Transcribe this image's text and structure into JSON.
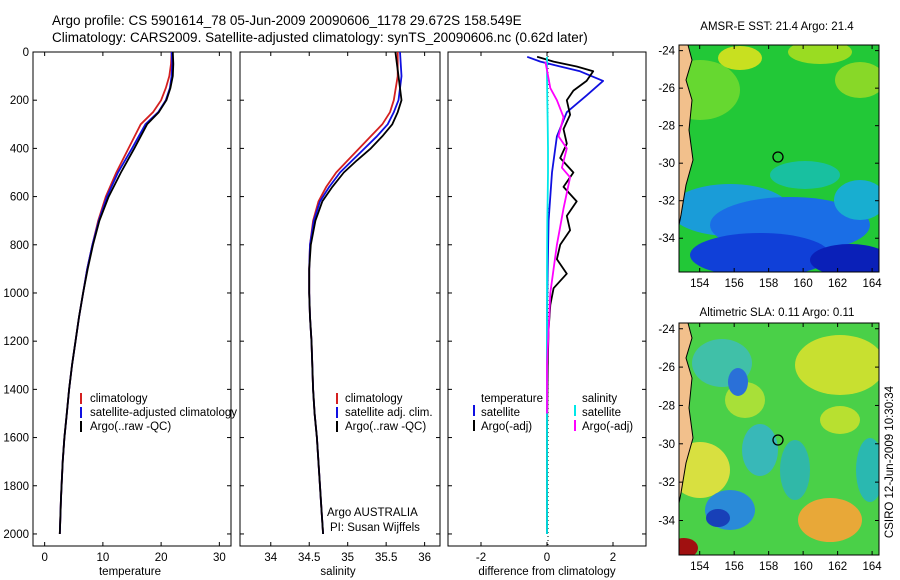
{
  "header": {
    "line1": "Argo profile: CS 5901614_78 05-Jun-2009 20090606_1178 29.672S 158.549E",
    "line2": "Climatology: CARS2009. Satellite-adjusted climatology: synTS_20090606.nc (0.62d later)"
  },
  "colors": {
    "climatology": "#d42020",
    "satellite": "#1010e0",
    "argo": "#000000",
    "sal_satellite": "#00e8e8",
    "sal_argo": "#ff00ff"
  },
  "side_label": "CSIRO 12-Jun-2009 10:30:34",
  "chart_data": [
    {
      "type": "line",
      "id": "temperature",
      "xlabel": "temperature",
      "ylabel": "",
      "xlim": [
        -2,
        32
      ],
      "ylim": [
        2050,
        0
      ],
      "xticks": [
        0,
        10,
        20,
        30
      ],
      "yticks": [
        0,
        200,
        400,
        600,
        800,
        1000,
        1200,
        1400,
        1600,
        1800,
        2000
      ],
      "legend": {
        "position": "lower-right",
        "entries": [
          "climatology",
          "satellite-adjusted climatology",
          "Argo(..raw -QC)"
        ]
      },
      "series": [
        {
          "name": "climatology",
          "x": [
            21.8,
            21.7,
            21.4,
            20.8,
            20.0,
            18.6,
            16.5,
            14.4,
            12.3,
            10.5,
            9.2,
            8.2,
            7.3,
            6.6,
            5.9,
            5.3,
            4.7,
            4.2,
            3.8,
            3.4,
            3.1,
            2.8,
            2.6
          ],
          "depth": [
            0,
            50,
            100,
            150,
            200,
            250,
            300,
            400,
            500,
            600,
            700,
            800,
            900,
            1000,
            1100,
            1200,
            1300,
            1400,
            1500,
            1600,
            1700,
            1850,
            2000
          ]
        },
        {
          "name": "satellite-adjusted climatology",
          "x": [
            21.8,
            21.9,
            21.8,
            21.5,
            20.8,
            19.5,
            17.3,
            15.0,
            12.6,
            10.7,
            9.3,
            8.2,
            7.3,
            6.6,
            5.9,
            5.3,
            4.7,
            4.2,
            3.8,
            3.4,
            3.1,
            2.8,
            2.6
          ],
          "depth": [
            0,
            50,
            100,
            150,
            200,
            250,
            300,
            400,
            500,
            600,
            700,
            800,
            900,
            1000,
            1100,
            1200,
            1300,
            1400,
            1500,
            1600,
            1700,
            1850,
            2000
          ]
        },
        {
          "name": "Argo(..raw -QC)",
          "x": [
            22.0,
            22.1,
            22.0,
            21.6,
            20.9,
            19.6,
            17.6,
            15.4,
            13.1,
            11.0,
            9.4,
            8.3,
            7.4,
            6.6,
            5.9,
            5.3,
            4.7,
            4.2,
            3.8,
            3.4,
            3.1,
            2.8,
            2.6
          ],
          "depth": [
            0,
            50,
            100,
            150,
            200,
            250,
            300,
            400,
            500,
            600,
            700,
            800,
            900,
            1000,
            1100,
            1200,
            1300,
            1400,
            1500,
            1600,
            1700,
            1850,
            2000
          ]
        }
      ]
    },
    {
      "type": "line",
      "id": "salinity",
      "xlabel": "salinity",
      "xlim": [
        33.6,
        36.2
      ],
      "ylim": [
        2050,
        0
      ],
      "xticks": [
        34,
        34.5,
        35,
        35.5,
        36
      ],
      "legend": {
        "position": "lower-right",
        "entries": [
          "climatology",
          "satellite adj. clim.",
          "Argo(..raw -QC)"
        ]
      },
      "annotation": {
        "line1": "Argo AUSTRALIA",
        "line2": "PI: Susan Wijffels"
      },
      "series": [
        {
          "name": "climatology",
          "x": [
            35.65,
            35.65,
            35.6,
            35.55,
            35.45,
            35.3,
            35.15,
            35.0,
            34.85,
            34.72,
            34.62,
            34.55,
            34.51,
            34.5,
            34.5,
            34.51,
            34.53,
            34.55,
            34.57,
            34.6,
            34.63,
            34.66,
            34.68
          ],
          "depth": [
            0,
            100,
            200,
            250,
            300,
            350,
            400,
            450,
            500,
            560,
            620,
            700,
            800,
            900,
            1000,
            1100,
            1200,
            1400,
            1500,
            1600,
            1750,
            1900,
            2000
          ]
        },
        {
          "name": "satellite adj. clim.",
          "x": [
            35.68,
            35.7,
            35.66,
            35.6,
            35.52,
            35.38,
            35.22,
            35.06,
            34.9,
            34.76,
            34.64,
            34.56,
            34.51,
            34.5,
            34.5,
            34.51,
            34.53,
            34.55,
            34.57,
            34.6,
            34.63,
            34.66,
            34.68
          ],
          "depth": [
            0,
            100,
            200,
            250,
            300,
            350,
            400,
            450,
            500,
            560,
            620,
            700,
            800,
            900,
            1000,
            1100,
            1200,
            1400,
            1500,
            1600,
            1750,
            1900,
            2000
          ]
        },
        {
          "name": "Argo(..raw -QC)",
          "x": [
            35.62,
            35.66,
            35.7,
            35.65,
            35.58,
            35.45,
            35.3,
            35.12,
            34.95,
            34.8,
            34.67,
            34.58,
            34.52,
            34.5,
            34.5,
            34.51,
            34.53,
            34.55,
            34.57,
            34.6,
            34.63,
            34.66,
            34.68
          ],
          "depth": [
            0,
            100,
            200,
            250,
            300,
            350,
            400,
            450,
            500,
            560,
            620,
            700,
            800,
            900,
            1000,
            1100,
            1200,
            1400,
            1500,
            1600,
            1750,
            1900,
            2000
          ]
        }
      ]
    },
    {
      "type": "line",
      "id": "difference",
      "xlabel": "difference from climatology",
      "xlim": [
        -3,
        3
      ],
      "ylim": [
        2050,
        0
      ],
      "xticks": [
        -2,
        0,
        2
      ],
      "legend": {
        "position": "lower-right",
        "temperature_title": "temperature",
        "salinity_title": "salinity",
        "temperature_entries": [
          "satellite",
          "Argo(-adj)"
        ],
        "salinity_entries": [
          "satellite",
          "Argo(-adj)"
        ]
      },
      "series": [
        {
          "name": "temperature satellite",
          "x": [
            -0.6,
            -0.2,
            0.4,
            1.0,
            1.7,
            1.2,
            0.6,
            0.3,
            0.15,
            0.05,
            0.02,
            0.0,
            0.0,
            0.0,
            0.0,
            0.0
          ],
          "depth": [
            20,
            40,
            60,
            80,
            120,
            180,
            250,
            350,
            500,
            700,
            900,
            1100,
            1300,
            1500,
            1800,
            2000
          ]
        },
        {
          "name": "temperature Argo(-adj)",
          "x": [
            -0.3,
            0.2,
            0.9,
            1.4,
            1.2,
            0.8,
            0.6,
            0.7,
            0.5,
            0.6,
            0.4,
            0.8,
            0.5,
            0.9,
            0.6,
            0.7,
            0.4,
            0.3,
            0.6,
            0.2,
            0.1,
            0.05,
            0.02,
            0.0,
            0.0
          ],
          "depth": [
            20,
            40,
            60,
            80,
            120,
            160,
            200,
            260,
            320,
            380,
            440,
            500,
            560,
            620,
            680,
            740,
            800,
            860,
            920,
            980,
            1050,
            1150,
            1300,
            1600,
            2000
          ]
        },
        {
          "name": "salinity satellite",
          "x": [
            0.0,
            0.0,
            0.01,
            0.02,
            0.03,
            0.03,
            0.02,
            0.01,
            0.0,
            0.0,
            0.0,
            0.0
          ],
          "depth": [
            20,
            100,
            200,
            300,
            400,
            500,
            600,
            700,
            900,
            1200,
            1600,
            2000
          ]
        },
        {
          "name": "salinity Argo(-adj)",
          "x": [
            -0.05,
            0.1,
            0.3,
            0.5,
            0.35,
            0.6,
            0.45,
            0.7,
            0.5,
            0.3,
            0.1,
            0.0,
            0.0
          ],
          "depth": [
            40,
            150,
            200,
            270,
            350,
            400,
            480,
            520,
            650,
            800,
            1000,
            1300,
            1500
          ]
        }
      ]
    },
    {
      "type": "heatmap",
      "id": "sst_map",
      "title": "AMSR-E SST: 21.4 Argo: 21.4",
      "xticks": [
        154,
        156,
        158,
        160,
        162,
        164
      ],
      "yticks": [
        -24,
        -26,
        -28,
        -30,
        -32,
        -34
      ],
      "xlim": [
        152.8,
        164.4
      ],
      "ylim": [
        -35.8,
        -23.7
      ],
      "argo_position": {
        "lon": 158.549,
        "lat": -29.672
      }
    },
    {
      "type": "heatmap",
      "id": "sla_map",
      "title": "Altimetric SLA: 0.11 Argo: 0.11",
      "xticks": [
        154,
        156,
        158,
        160,
        162,
        164
      ],
      "yticks": [
        -24,
        -26,
        -28,
        -30,
        -32,
        -34
      ],
      "xlim": [
        152.8,
        164.4
      ],
      "ylim": [
        -35.8,
        -23.7
      ],
      "argo_position": {
        "lon": 158.549,
        "lat": -29.672
      }
    }
  ]
}
